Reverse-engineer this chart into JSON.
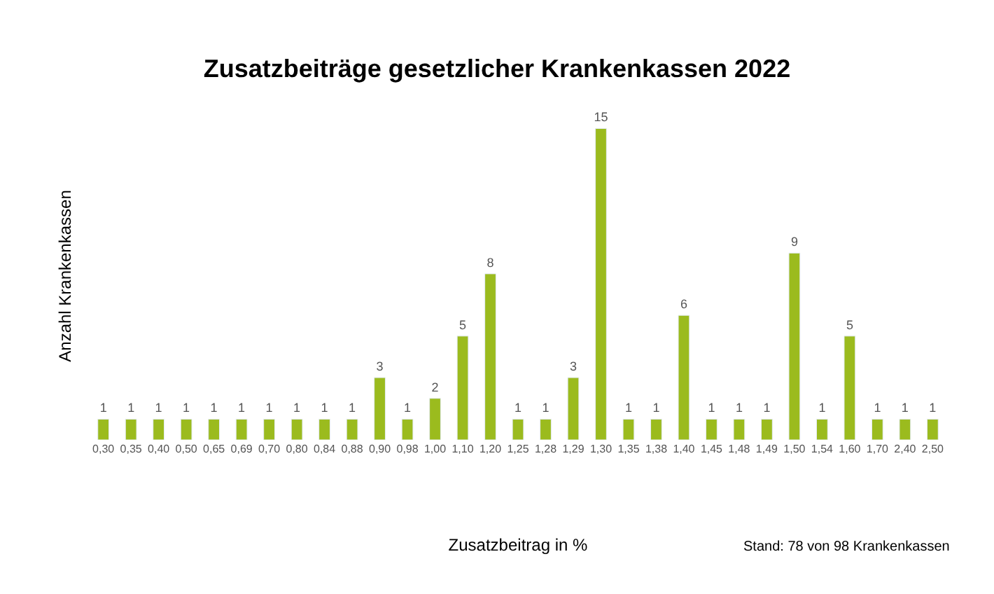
{
  "chart_data": {
    "type": "bar",
    "title": "Zusatzbeiträge gesetzlicher Krankenkassen 2022",
    "xlabel": "Zusatzbeitrag in %",
    "ylabel": "Anzahl Krankenkassen",
    "categories": [
      "0,30",
      "0,35",
      "0,40",
      "0,50",
      "0,65",
      "0,69",
      "0,70",
      "0,80",
      "0,84",
      "0,88",
      "0,90",
      "0,98",
      "1,00",
      "1,10",
      "1,20",
      "1,25",
      "1,28",
      "1,29",
      "1,30",
      "1,35",
      "1,38",
      "1,40",
      "1,45",
      "1,48",
      "1,49",
      "1,50",
      "1,54",
      "1,60",
      "1,70",
      "2,40",
      "2,50"
    ],
    "values": [
      1,
      1,
      1,
      1,
      1,
      1,
      1,
      1,
      1,
      1,
      3,
      1,
      2,
      5,
      8,
      1,
      1,
      3,
      15,
      1,
      1,
      6,
      1,
      1,
      1,
      9,
      1,
      5,
      1,
      1,
      1
    ],
    "color": "#9bbb1e",
    "data_labels": true,
    "legend": false,
    "annotations": [
      "Stand: 78 von 98 Krankenkassen"
    ]
  }
}
